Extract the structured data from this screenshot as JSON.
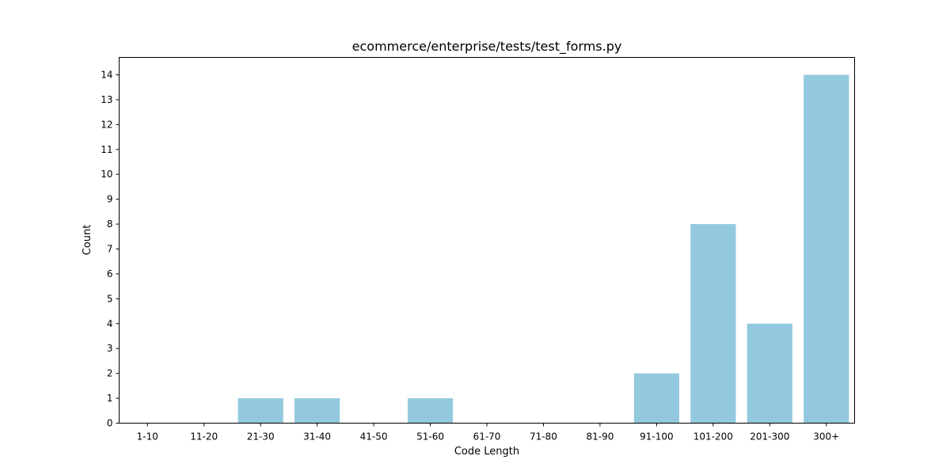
{
  "chart_data": {
    "type": "bar",
    "title": "ecommerce/enterprise/tests/test_forms.py",
    "xlabel": "Code Length",
    "ylabel": "Count",
    "categories": [
      "1-10",
      "11-20",
      "21-30",
      "31-40",
      "41-50",
      "51-60",
      "61-70",
      "71-80",
      "81-90",
      "91-100",
      "101-200",
      "201-300",
      "300+"
    ],
    "values": [
      0,
      0,
      1,
      1,
      0,
      1,
      0,
      0,
      0,
      2,
      8,
      4,
      14
    ],
    "ylim": [
      0,
      14.7
    ],
    "yticks": [
      0,
      1,
      2,
      3,
      4,
      5,
      6,
      7,
      8,
      9,
      10,
      11,
      12,
      13,
      14
    ],
    "grid": false,
    "bar_color": "#92c9de"
  }
}
